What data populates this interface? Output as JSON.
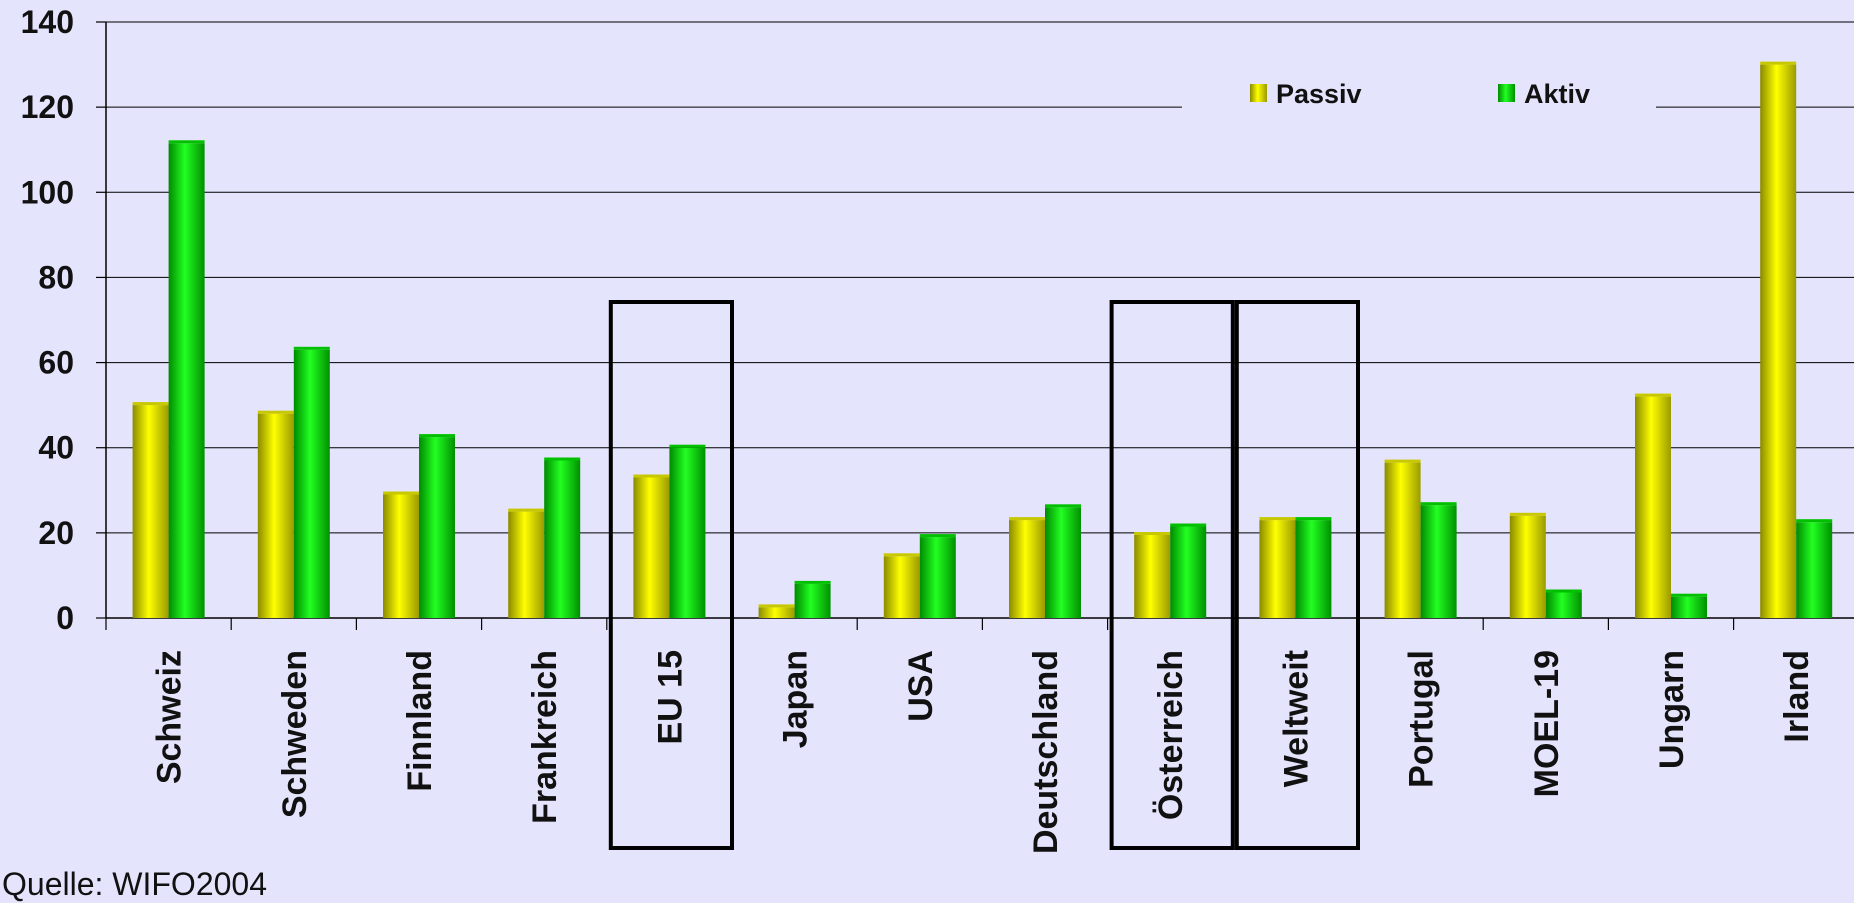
{
  "chart_data": {
    "type": "bar",
    "title": "",
    "xlabel": "",
    "ylabel": "",
    "ylim": [
      0,
      140
    ],
    "yticks": [
      0,
      20,
      40,
      60,
      80,
      100,
      120,
      140
    ],
    "grid": true,
    "legend_position": "top-right",
    "categories": [
      "Schweiz",
      "Schweden",
      "Finnland",
      "Frankreich",
      "EU 15",
      "Japan",
      "USA",
      "Deutschland",
      "Österreich",
      "Weltweit",
      "Portugal",
      "MOEL-19",
      "Ungarn",
      "Irland"
    ],
    "series": [
      {
        "name": "Passiv",
        "color": "#e8e800",
        "values": [
          50,
          48,
          29,
          25,
          33,
          2.5,
          14.5,
          23,
          19.5,
          23,
          36.5,
          24,
          52,
          130
        ]
      },
      {
        "name": "Aktiv",
        "color": "#00e000",
        "values": [
          111.5,
          63,
          42.5,
          37,
          40,
          8,
          19,
          26,
          21.5,
          23,
          26.5,
          6,
          5,
          22.5
        ]
      }
    ],
    "highlighted_categories": [
      "EU 15",
      "Österreich",
      "Weltweit"
    ]
  },
  "source_note": "Quelle: WIFO2004"
}
